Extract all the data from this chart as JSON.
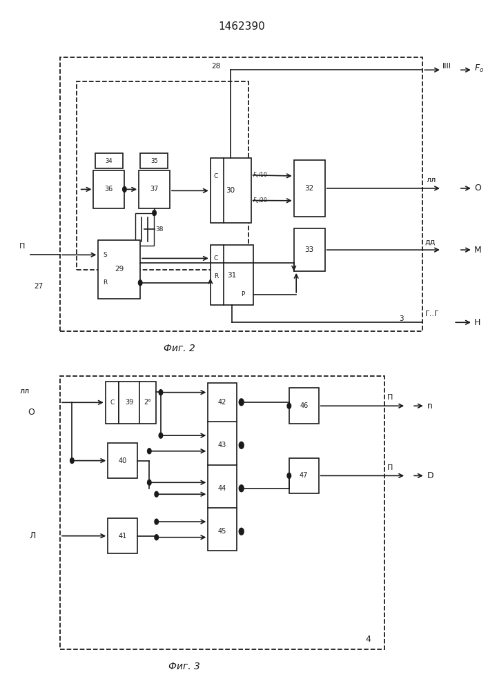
{
  "title": "1462390",
  "fig2_label": "Фиг. 2",
  "fig3_label": "Фиг. 3",
  "background": "#ffffff",
  "line_color": "#1a1a1a",
  "box_color": "#ffffff"
}
